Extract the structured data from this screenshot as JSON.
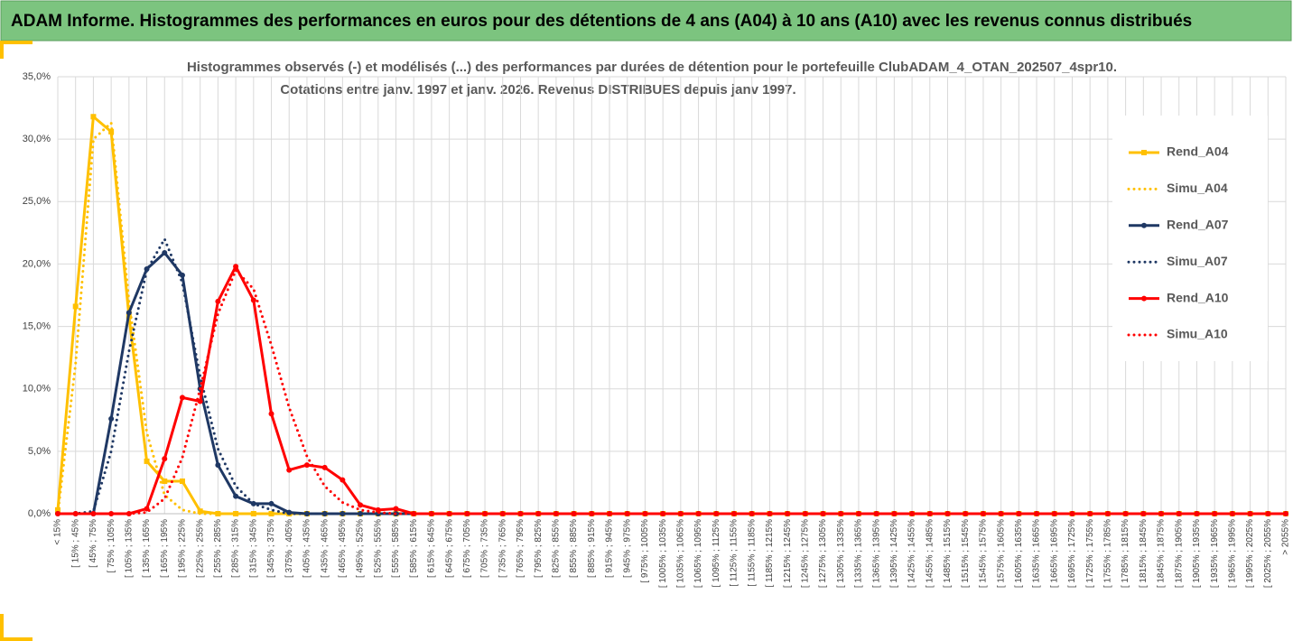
{
  "header": {
    "title": "ADAM Informe. Histogrammes des performances en euros pour des détentions de 4 ans (A04) à 10 ans (A10) avec les revenus connus distribués"
  },
  "chart_data": {
    "type": "line",
    "title": "Histogrammes observés (-) et modélisés (...) des performances par durées de détention pour le portefeuille ClubADAM_4_OTAN_202507_4spr10.",
    "subtitle": "Cotations entre janv. 1997 et janv. 2026. Revenus DISTRIBUES depuis janv 1997.",
    "categories": [
      "< 15%",
      "[ 15% ; 45%",
      "[ 45% ; 75%",
      "[ 75% ; 105%",
      "[ 105% ; 135%",
      "[ 135% ; 165%",
      "[ 165% ; 195%",
      "[ 195% ; 225%",
      "[ 225% ; 255%",
      "[ 255% ; 285%",
      "[ 285% ; 315%",
      "[ 315% ; 345%",
      "[ 345% ; 375%",
      "[ 375% ; 405%",
      "[ 405% ; 435%",
      "[ 435% ; 465%",
      "[ 465% ; 495%",
      "[ 495% ; 525%",
      "[ 525% ; 555%",
      "[ 555% ; 585%",
      "[ 585% ; 615%",
      "[ 615% ; 645%",
      "[ 645% ; 675%",
      "[ 675% ; 705%",
      "[ 705% ; 735%",
      "[ 735% ; 765%",
      "[ 765% ; 795%",
      "[ 795% ; 825%",
      "[ 825% ; 855%",
      "[ 855% ; 885%",
      "[ 885% ; 915%",
      "[ 915% ; 945%",
      "[ 945% ; 975%",
      "[ 975% ; 1005%",
      "[ 1005% ; 1035%",
      "[ 1035% ; 1065%",
      "[ 1065% ; 1095%",
      "[ 1095% ; 1125%",
      "[ 1125% ; 1155%",
      "[ 1155% ; 1185%",
      "[ 1185% ; 1215%",
      "[ 1215% ; 1245%",
      "[ 1245% ; 1275%",
      "[ 1275% ; 1305%",
      "[ 1305% ; 1335%",
      "[ 1335% ; 1365%",
      "[ 1365% ; 1395%",
      "[ 1395% ; 1425%",
      "[ 1425% ; 1455%",
      "[ 1455% ; 1485%",
      "[ 1485% ; 1515%",
      "[ 1515% ; 1545%",
      "[ 1545% ; 1575%",
      "[ 1575% ; 1605%",
      "[ 1605% ; 1635%",
      "[ 1635% ; 1665%",
      "[ 1665% ; 1695%",
      "[ 1695% ; 1725%",
      "[ 1725% ; 1755%",
      "[ 1755% ; 1785%",
      "[ 1785% ; 1815%",
      "[ 1815% ; 1845%",
      "[ 1845% ; 1875%",
      "[ 1875% ; 1905%",
      "[ 1905% ; 1935%",
      "[ 1935% ; 1965%",
      "[ 1965% ; 1995%",
      "[ 1995% ; 2025%",
      "[ 2025% ; 2055%",
      "> 2055%"
    ],
    "series": [
      {
        "name": "Rend_A04",
        "color": "#ffc000",
        "dash": "solid",
        "marker": "square",
        "values": [
          0.3,
          16.6,
          31.8,
          30.6,
          15.8,
          4.2,
          2.6,
          2.6,
          0.2,
          0,
          0,
          0,
          0,
          0,
          0,
          0,
          0,
          0,
          0,
          0,
          0,
          0,
          0,
          0,
          0,
          0,
          0,
          0,
          0,
          0,
          0,
          0,
          0,
          0,
          0,
          0,
          0,
          0,
          0,
          0,
          0,
          0,
          0,
          0,
          0,
          0,
          0,
          0,
          0,
          0,
          0,
          0,
          0,
          0,
          0,
          0,
          0,
          0,
          0,
          0,
          0,
          0,
          0,
          0,
          0,
          0,
          0,
          0,
          0,
          0
        ]
      },
      {
        "name": "Simu_A04",
        "color": "#ffc000",
        "dash": "dotted",
        "marker": "none",
        "values": [
          0,
          12,
          30,
          31.3,
          17,
          6.5,
          1.5,
          0.3,
          0,
          0,
          0,
          0,
          0,
          0,
          0,
          0,
          0,
          0,
          0,
          0,
          0,
          0,
          0,
          0,
          0,
          0,
          0,
          0,
          0,
          0,
          0,
          0,
          0,
          0,
          0,
          0,
          0,
          0,
          0,
          0,
          0,
          0,
          0,
          0,
          0,
          0,
          0,
          0,
          0,
          0,
          0,
          0,
          0,
          0,
          0,
          0,
          0,
          0,
          0,
          0,
          0,
          0,
          0,
          0,
          0,
          0,
          0,
          0,
          0,
          0
        ]
      },
      {
        "name": "Rend_A07",
        "color": "#1f3864",
        "dash": "solid",
        "marker": "circle",
        "values": [
          0,
          0,
          0,
          7.6,
          16.1,
          19.6,
          20.9,
          19.1,
          10,
          3.9,
          1.4,
          0.8,
          0.8,
          0.1,
          0,
          0,
          0,
          0,
          0,
          0,
          0,
          0,
          0,
          0,
          0,
          0,
          0,
          0,
          0,
          0,
          0,
          0,
          0,
          0,
          0,
          0,
          0,
          0,
          0,
          0,
          0,
          0,
          0,
          0,
          0,
          0,
          0,
          0,
          0,
          0,
          0,
          0,
          0,
          0,
          0,
          0,
          0,
          0,
          0,
          0,
          0,
          0,
          0,
          0,
          0,
          0,
          0,
          0,
          0,
          0
        ]
      },
      {
        "name": "Simu_A07",
        "color": "#1f3864",
        "dash": "dotted",
        "marker": "none",
        "values": [
          0,
          0,
          0.2,
          5,
          13,
          19.5,
          22,
          18.5,
          11,
          5.2,
          2.2,
          0.8,
          0.3,
          0,
          0,
          0,
          0,
          0,
          0,
          0,
          0,
          0,
          0,
          0,
          0,
          0,
          0,
          0,
          0,
          0,
          0,
          0,
          0,
          0,
          0,
          0,
          0,
          0,
          0,
          0,
          0,
          0,
          0,
          0,
          0,
          0,
          0,
          0,
          0,
          0,
          0,
          0,
          0,
          0,
          0,
          0,
          0,
          0,
          0,
          0,
          0,
          0,
          0,
          0,
          0,
          0,
          0,
          0,
          0,
          0
        ]
      },
      {
        "name": "Rend_A10",
        "color": "#ff0000",
        "dash": "solid",
        "marker": "circle",
        "values": [
          0,
          0,
          0,
          0,
          0,
          0.4,
          4.4,
          9.3,
          9,
          17,
          19.8,
          17.1,
          8,
          3.5,
          3.9,
          3.7,
          2.7,
          0.7,
          0.3,
          0.4,
          0,
          0,
          0,
          0,
          0,
          0,
          0,
          0,
          0,
          0,
          0,
          0,
          0,
          0,
          0,
          0,
          0,
          0,
          0,
          0,
          0,
          0,
          0,
          0,
          0,
          0,
          0,
          0,
          0,
          0,
          0,
          0,
          0,
          0,
          0,
          0,
          0,
          0,
          0,
          0,
          0,
          0,
          0,
          0,
          0,
          0,
          0,
          0,
          0,
          0
        ]
      },
      {
        "name": "Simu_A10",
        "color": "#ff0000",
        "dash": "dotted",
        "marker": "none",
        "values": [
          0,
          0,
          0,
          0,
          0,
          0.1,
          1.2,
          4.5,
          10,
          16,
          19.5,
          18,
          13.5,
          8.5,
          4.6,
          2.2,
          0.9,
          0.3,
          0.1,
          0,
          0,
          0,
          0,
          0,
          0,
          0,
          0,
          0,
          0,
          0,
          0,
          0,
          0,
          0,
          0,
          0,
          0,
          0,
          0,
          0,
          0,
          0,
          0,
          0,
          0,
          0,
          0,
          0,
          0,
          0,
          0,
          0,
          0,
          0,
          0,
          0,
          0,
          0,
          0,
          0,
          0,
          0,
          0,
          0,
          0,
          0,
          0,
          0,
          0,
          0
        ]
      }
    ],
    "ylim": [
      0,
      35
    ],
    "yticks": [
      {
        "value": 0,
        "label": "0,0%"
      },
      {
        "value": 5,
        "label": "5,0%"
      },
      {
        "value": 10,
        "label": "10,0%"
      },
      {
        "value": 15,
        "label": "15,0%"
      },
      {
        "value": 20,
        "label": "20,0%"
      },
      {
        "value": 25,
        "label": "25,0%"
      },
      {
        "value": 30,
        "label": "30,0%"
      },
      {
        "value": 35,
        "label": "35,0%"
      }
    ],
    "grid": true,
    "legend": "right"
  }
}
